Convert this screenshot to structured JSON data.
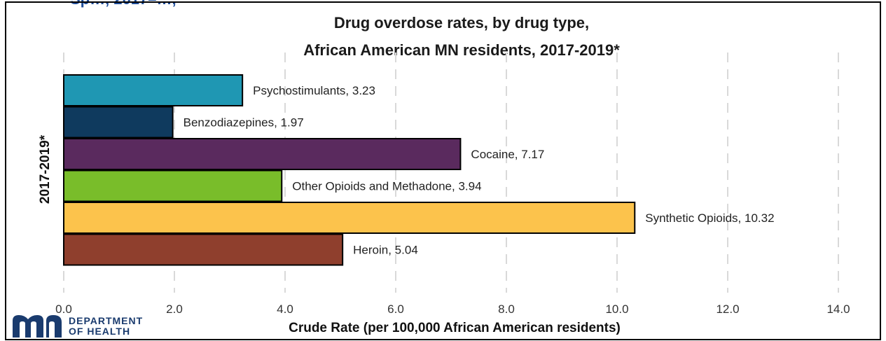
{
  "header_snippet": "Sp…, 2017–…,",
  "logo": {
    "line1": "DEPARTMENT",
    "line2": "OF HEALTH",
    "color": "#1a3b6e"
  },
  "chart_data": {
    "type": "bar",
    "orientation": "horizontal",
    "title_line1": "Drug overdose rates, by drug type,",
    "title_line2": "African American MN residents, 2017-2019*",
    "xlabel": "Crude Rate (per 100,000 African American residents)",
    "ylabel": "2017-2019*",
    "xlim": [
      0,
      14
    ],
    "x_ticks": [
      "0.0",
      "2.0",
      "4.0",
      "6.0",
      "8.0",
      "10.0",
      "12.0",
      "14.0"
    ],
    "gridlines": "dashed vertical",
    "categories": [
      "Psychostimulants",
      "Benzodiazepines",
      "Cocaine",
      "Other Opioids and Methadone",
      "Synthetic Opioids",
      "Heroin"
    ],
    "values": [
      3.23,
      1.97,
      7.17,
      3.94,
      10.32,
      5.04
    ],
    "data_labels": [
      "Psychostimulants, 3.23",
      "Benzodiazepines, 1.97",
      "Cocaine, 7.17",
      "Other Opioids and Methadone, 3.94",
      "Synthetic Opioids, 10.32",
      "Heroin, 5.04"
    ],
    "colors": [
      "#1f97b3",
      "#0f3a5e",
      "#5a2a5e",
      "#79bd2a",
      "#fcc34c",
      "#8f3f2d"
    ]
  }
}
